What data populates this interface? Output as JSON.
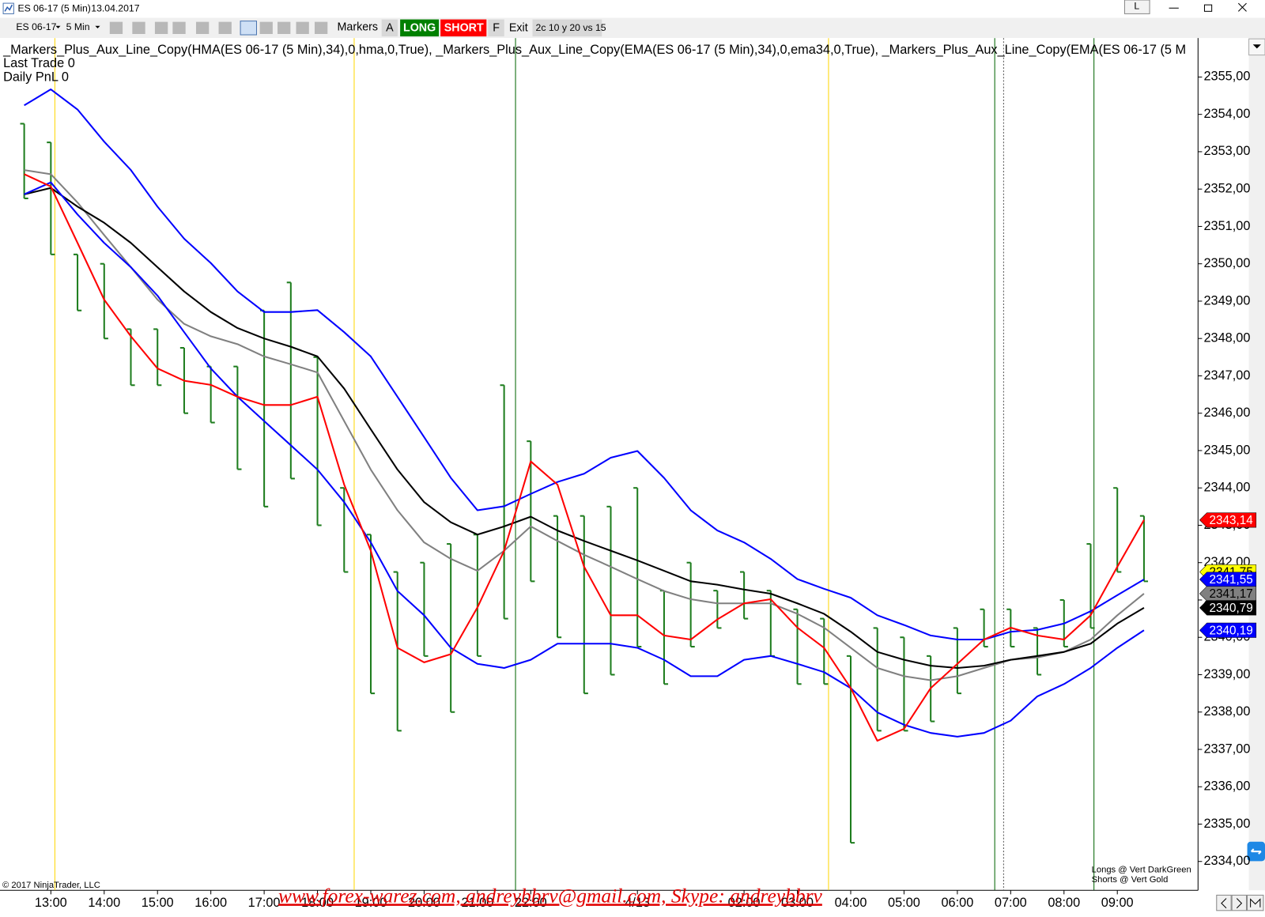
{
  "window": {
    "title": "ES 06-17 (5 Min)",
    "date": "13.04.2017",
    "layout_button": "L"
  },
  "toolbar": {
    "instrument": "ES 06-17",
    "interval": "5 Min",
    "markers": "Markers",
    "a": "A",
    "long": "LONG",
    "short": "SHORT",
    "f": "F",
    "exit": "Exit",
    "strategy": "2c 10 y 20 vs 15"
  },
  "chart_data": {
    "type": "ohlc",
    "indicators": "_Markers_Plus_Aux_Line_Copy(HMA(ES  06-17  (5  Min),34),0,hma,0,True),  _Markers_Plus_Aux_Line_Copy(EMA(ES  06-17  (5  Min),34),0,ema34,0,True),  _Markers_Plus_Aux_Line_Copy(EMA(ES  06-17  (5  M",
    "last_trade": "Last Trade 0",
    "daily_pnl": "Daily PnL  0",
    "copyright": "© 2017 NinjaTrader, LLC",
    "legend_longs": "Longs @ Vert  DarkGreen",
    "legend_shorts": "Shorts @ Vert  Gold",
    "watermark": "www.forex-warez.com, andreybbrv@gmail.com, Skype: andreybbrv",
    "categories": [
      null,
      "13:00",
      null,
      "14:00",
      null,
      "15:00",
      null,
      "16:00",
      null,
      "17:00",
      null,
      "18:00",
      null,
      "19:00",
      null,
      "20:00",
      null,
      "21:00",
      null,
      "22:00",
      null,
      null,
      null,
      "4/13",
      null,
      null,
      null,
      "02:00",
      null,
      "03:00",
      null,
      "04:00",
      null,
      "05:00",
      null,
      "06:00",
      null,
      "07:00",
      null,
      "08:00",
      null,
      "09:00",
      null
    ],
    "bar_color": "#1e7d1e",
    "high": [
      2353.75,
      2353.25,
      2350.25,
      2350.0,
      2348.25,
      2348.25,
      2347.75,
      2347.25,
      2347.25,
      2348.75,
      2349.5,
      2347.5,
      2344.0,
      2342.75,
      2341.75,
      2342.0,
      2342.5,
      2342.75,
      2346.75,
      2345.25,
      2343.25,
      2343.25,
      2343.5,
      2344.0,
      2341.25,
      2342.0,
      2341.25,
      2341.75,
      2341.25,
      2340.75,
      2340.5,
      2339.5,
      2340.25,
      2340.0,
      2339.5,
      2340.25,
      2340.75,
      2340.75,
      2340.25,
      2341.0,
      2342.5,
      2344.0,
      2343.25
    ],
    "low": [
      2351.75,
      2350.25,
      2348.75,
      2348.0,
      2346.75,
      2346.75,
      2346.0,
      2345.75,
      2344.5,
      2343.5,
      2344.25,
      2343.0,
      2341.75,
      2338.5,
      2337.5,
      2339.5,
      2338.0,
      2339.5,
      2340.5,
      2341.5,
      2340.0,
      2338.5,
      2339.0,
      2339.75,
      2338.75,
      2339.75,
      2340.25,
      2340.5,
      2339.5,
      2338.75,
      2338.75,
      2334.5,
      2337.5,
      2337.5,
      2337.75,
      2338.5,
      2339.75,
      2339.75,
      2339.0,
      2339.75,
      2340.25,
      2341.75,
      2341.5
    ],
    "last_price": 2341.75,
    "last_price_label": "2341,75",
    "last_price_color": "#ffff00",
    "series": [
      {
        "color": "#0000ff",
        "values": [
          2354.24,
          2354.67,
          2354.13,
          2353.27,
          2352.51,
          2351.53,
          2350.67,
          2350.02,
          2349.26,
          2348.71,
          2348.71,
          2348.76,
          2348.17,
          2347.52,
          2346.44,
          2345.36,
          2344.27,
          2343.4,
          2343.51,
          2343.84,
          2344.16,
          2344.38,
          2344.81,
          2344.99,
          2344.27,
          2343.4,
          2342.86,
          2342.54,
          2342.1,
          2341.56,
          2341.3,
          2341.06,
          2340.59,
          2340.33,
          2340.05,
          2339.94,
          2339.94,
          2340.15,
          2340.2,
          2340.37,
          2340.7,
          2341.13,
          2341.55
        ],
        "value_labels": [
          null,
          null,
          null,
          null,
          null,
          null,
          null,
          null,
          null,
          null,
          null,
          null,
          null,
          null,
          null,
          null,
          null,
          null,
          null,
          null,
          null,
          null,
          null,
          null,
          null,
          null,
          null,
          null,
          null,
          null,
          null,
          null,
          null,
          null,
          null,
          null,
          null,
          null,
          null,
          null,
          null,
          null,
          "2341,55"
        ]
      },
      {
        "color": "#808080",
        "values": [
          2352.51,
          2352.4,
          2351.64,
          2350.77,
          2349.91,
          2349.04,
          2348.39,
          2348.06,
          2347.85,
          2347.52,
          2347.31,
          2347.09,
          2345.79,
          2344.49,
          2343.4,
          2342.54,
          2342.1,
          2341.78,
          2342.32,
          2342.97,
          2342.58,
          2342.21,
          2341.89,
          2341.56,
          2341.24,
          2341.02,
          2340.91,
          2340.91,
          2340.91,
          2340.63,
          2340.26,
          2339.72,
          2339.18,
          2338.96,
          2338.85,
          2338.96,
          2339.18,
          2339.4,
          2339.46,
          2339.61,
          2339.94,
          2340.59,
          2341.17
        ],
        "value_labels": [
          null,
          null,
          null,
          null,
          null,
          null,
          null,
          null,
          null,
          null,
          null,
          null,
          null,
          null,
          null,
          null,
          null,
          null,
          null,
          null,
          null,
          null,
          null,
          null,
          null,
          null,
          null,
          null,
          null,
          null,
          null,
          null,
          null,
          null,
          null,
          null,
          null,
          null,
          null,
          null,
          null,
          null,
          "2341,17"
        ]
      },
      {
        "color": "#000000",
        "values": [
          2351.86,
          2352.03,
          2351.53,
          2351.1,
          2350.56,
          2349.91,
          2349.26,
          2348.71,
          2348.28,
          2348.0,
          2347.78,
          2347.52,
          2346.66,
          2345.57,
          2344.49,
          2343.62,
          2343.08,
          2342.75,
          2342.97,
          2343.23,
          2342.86,
          2342.58,
          2342.32,
          2342.06,
          2341.78,
          2341.5,
          2341.41,
          2341.28,
          2341.17,
          2340.91,
          2340.63,
          2340.15,
          2339.61,
          2339.4,
          2339.24,
          2339.18,
          2339.24,
          2339.4,
          2339.5,
          2339.61,
          2339.83,
          2340.37,
          2340.79
        ],
        "value_labels": [
          null,
          null,
          null,
          null,
          null,
          null,
          null,
          null,
          null,
          null,
          null,
          null,
          null,
          null,
          null,
          null,
          null,
          null,
          null,
          null,
          null,
          null,
          null,
          null,
          null,
          null,
          null,
          null,
          null,
          null,
          null,
          null,
          null,
          null,
          null,
          null,
          null,
          null,
          null,
          null,
          null,
          null,
          "2340,79"
        ]
      },
      {
        "color": "#0000ff",
        "values": [
          2351.86,
          2352.18,
          2351.32,
          2350.56,
          2349.91,
          2349.15,
          2348.17,
          2347.2,
          2346.44,
          2345.79,
          2345.14,
          2344.49,
          2343.62,
          2342.54,
          2341.24,
          2340.59,
          2339.72,
          2339.29,
          2339.18,
          2339.4,
          2339.83,
          2339.83,
          2339.83,
          2339.72,
          2339.4,
          2338.96,
          2338.96,
          2339.4,
          2339.5,
          2339.29,
          2339.07,
          2338.64,
          2337.99,
          2337.66,
          2337.44,
          2337.34,
          2337.44,
          2337.77,
          2338.42,
          2338.75,
          2339.18,
          2339.72,
          2340.19
        ],
        "value_labels": [
          null,
          null,
          null,
          null,
          null,
          null,
          null,
          null,
          null,
          null,
          null,
          null,
          null,
          null,
          null,
          null,
          null,
          null,
          null,
          null,
          null,
          null,
          null,
          null,
          null,
          null,
          null,
          null,
          null,
          null,
          null,
          null,
          null,
          null,
          null,
          null,
          null,
          null,
          null,
          null,
          null,
          null,
          "2340,19"
        ]
      },
      {
        "color": "#ff0000",
        "values": [
          2352.4,
          2352.07,
          2350.56,
          2349.04,
          2348.06,
          2347.2,
          2346.87,
          2346.76,
          2346.44,
          2346.22,
          2346.22,
          2346.44,
          2344.09,
          2342.32,
          2339.72,
          2339.33,
          2339.55,
          2340.8,
          2342.32,
          2344.71,
          2344.09,
          2341.89,
          2340.59,
          2340.59,
          2340.05,
          2339.94,
          2340.48,
          2340.91,
          2341.02,
          2340.26,
          2339.72,
          2338.64,
          2337.23,
          2337.55,
          2338.64,
          2339.29,
          2339.94,
          2340.26,
          2340.05,
          2339.94,
          2340.59,
          2341.89,
          2343.14
        ],
        "value_labels": [
          null,
          null,
          null,
          null,
          null,
          null,
          null,
          null,
          null,
          null,
          null,
          null,
          null,
          null,
          null,
          null,
          null,
          null,
          null,
          null,
          null,
          null,
          null,
          null,
          null,
          null,
          null,
          null,
          null,
          null,
          null,
          null,
          null,
          null,
          null,
          null,
          null,
          null,
          null,
          null,
          null,
          null,
          "2343,14"
        ]
      }
    ],
    "ylim": [
      2333.25,
      2356.0
    ],
    "yticks": [
      {
        "value": 2334,
        "label": "2334,00"
      },
      {
        "value": 2335,
        "label": "2335,00"
      },
      {
        "value": 2336,
        "label": "2336,00"
      },
      {
        "value": 2337,
        "label": "2337,00"
      },
      {
        "value": 2338,
        "label": "2338,00"
      },
      {
        "value": 2339,
        "label": "2339,00"
      },
      {
        "value": 2340,
        "label": "2340,00"
      },
      {
        "value": 2341,
        "label": "2341,00"
      },
      {
        "value": 2342,
        "label": "2342,00"
      },
      {
        "value": 2343,
        "label": "2343,00"
      },
      {
        "value": 2344,
        "label": "2344,00"
      },
      {
        "value": 2345,
        "label": "2345,00"
      },
      {
        "value": 2346,
        "label": "2346,00"
      },
      {
        "value": 2347,
        "label": "2347,00"
      },
      {
        "value": 2348,
        "label": "2348,00"
      },
      {
        "value": 2349,
        "label": "2349,00"
      },
      {
        "value": 2350,
        "label": "2350,00"
      },
      {
        "value": 2351,
        "label": "2351,00"
      },
      {
        "value": 2352,
        "label": "2352,00"
      },
      {
        "value": 2353,
        "label": "2353,00"
      },
      {
        "value": 2354,
        "label": "2354,00"
      },
      {
        "value": 2355,
        "label": "2355,00"
      }
    ]
  }
}
